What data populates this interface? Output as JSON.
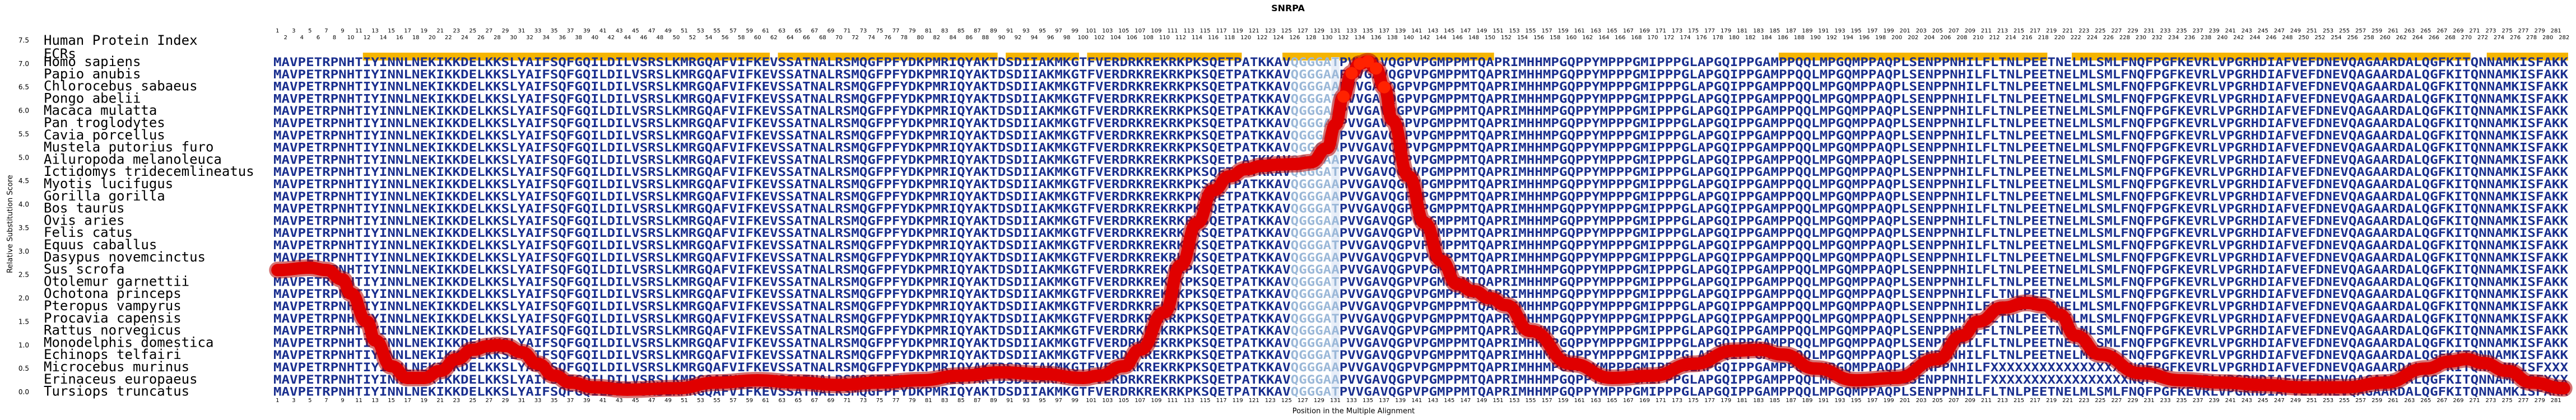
{
  "chart_data": {
    "type": "line",
    "title": "SNRPA",
    "xlabel": "Position in the Multiple Alignment",
    "ylabel": "Relative Substitution Score",
    "ylim": [
      0,
      7.5
    ],
    "yticks": [
      "0.0",
      "0.5",
      "1.0",
      "1.5",
      "2.0",
      "2.5",
      "3.0",
      "3.5",
      "4.0",
      "4.5",
      "5.0",
      "5.5",
      "6.0",
      "6.5",
      "7.0",
      "7.5"
    ],
    "alignment_length": 282,
    "header_labels": [
      "Human Protein Index",
      "ECRs"
    ],
    "species": [
      "Homo sapiens",
      "Papio anubis",
      "Chlorocebus sabaeus",
      "Pongo abelii",
      "Macaca mulatta",
      "Pan troglodytes",
      "Cavia porcellus",
      "Mustela putorius furo",
      "Ailuropoda melanoleuca",
      "Ictidomys tridecemlineatus",
      "Myotis lucifugus",
      "Gorilla gorilla",
      "Bos taurus",
      "Ovis aries",
      "Felis catus",
      "Equus caballus",
      "Dasypus novemcinctus",
      "Sus scrofa",
      "Otolemur garnettii",
      "Ochotona princeps",
      "Pteropus vampyrus",
      "Procavia capensis",
      "Rattus norvegicus",
      "Monodelphis domestica",
      "Echinops telfairi",
      "Microcebus murinus",
      "Erinaceus europaeus",
      "Tursiops truncatus"
    ],
    "ecr_regions": [
      [
        12,
        61
      ],
      [
        63,
        89
      ],
      [
        91,
        99
      ],
      [
        101,
        119
      ],
      [
        125,
        150
      ],
      [
        186,
        218
      ],
      [
        222,
        270
      ],
      [
        273,
        282
      ]
    ],
    "sequence_full": "MAVPETRPNHTIYINNLNEKIKKDELKKSLYAIFSQFGQILDILVSRSLKMRGQAFVIFKEVSSATNALRSMQGFPFYDKPMRIQYAKTDSDIIAKMKGTFVERDRKREKRKPKSQETPATKKAVQGGGATPVVGAVQGPVPGMPPMTQAPRIMHHMPGQPPYMPPPGMIPPPGLAPGQIPPGAMPPQQLMPGQMPPAQPLSENPPNHILFLTNLPEETNELMLSMLFNQFPGFKEVRLVPGRHDIAFVEFDNEVQAGAARDALQGFKITQNNAMKISFAKK",
    "sequence_variant_a": "MAVPETRPNHTIYINNLNEKIKKDELKKSLYAIFSQFGQILDILVSRSLKMRGQAFVIFKEVSSATNALRSMQGFPFYDKPMRIQYAKTDSDIIAKMKGTFVERDRKREKRKPKSQETPATKKAVQGGGAAPVVGAVQGPVPGMPPMTQAPRIMHHMPGQPPYMPPPGMIPPPGLAPGQIPPGAMPPQQLMPGQMPPAQPLSENPPNHILFLTNLPEETNELMLSMLFNQFPGFKEVRLVPGRHDIAFVEFDNEVQAGAARDALQGFKITQNNAMKISFAKK",
    "sequence_variant_b": "MAVPETRPNHTIYINNLNEKIKKDELKKSLYAIFSQFGQILDILVSRSLKMRGQAFVIFKEVSSATNALRSMQGFPFYDKPMRIQYAKTDSDIIAKMKGTFVERDRKREKRKPKSQETPATKKAVQGGGAAPVVGAVQGPVPGMPPMTQAPRIMHHMPGQPPYMPPPGMIPPPGLAPGQIPPGAMPPQQLMPGQMPPAQPLSENPPNHILFLTNLPEETNELMLSMLFNQFPGFKEVRLVPGRHDIAFVEFDNEVQAGAARDALQGFKITQNNAMKISFAKK",
    "sequence_xmasked": "MAVPETRPNHTIYINNLNEKIKKDELKKSLYAIFSQFGQILDILVSRSLKMRGQAFVIFKEVSSATNALRSMQGFPFYDKPMRIQYAKTDSDIIAKMKGTFVERDRKREKRKPKSQETPATKKAVQGGGAAPVVGAVQGPVPGMPPMTQAPRIMHHMPGQPPYMPPPGMIPPPGLAPGQIPPGAMPPQQLMPGQMPPAQPLSENPPNHILFLTNLPEETNELMLSMLFNQFPGFKEVRLVPGRHDIAFVEFDNEVQAGAARDALQGFKITQNNAMKISFAKK",
    "xmask_ranges": [
      [
        212,
        228
      ],
      [
        280,
        282
      ]
    ],
    "xmask_rows": [
      25,
      26
    ],
    "curve": {
      "x": [
        1,
        5,
        7,
        9,
        10,
        12,
        13,
        15,
        17,
        19,
        21,
        23,
        25,
        27,
        28,
        29,
        31,
        33,
        35,
        37,
        40,
        44,
        50,
        55,
        60,
        65,
        70,
        75,
        80,
        85,
        90,
        95,
        100,
        102,
        105,
        107,
        110,
        112,
        114,
        116,
        118,
        120,
        122,
        124,
        126,
        128,
        130,
        131,
        132,
        133,
        134,
        135,
        136,
        137,
        138,
        140,
        142,
        144,
        146,
        148,
        150,
        152,
        155,
        160,
        165,
        170,
        175,
        180,
        183,
        186,
        190,
        195,
        200,
        205,
        208,
        210,
        213,
        216,
        218,
        220,
        222,
        225,
        230,
        235,
        240,
        245,
        250,
        255,
        260,
        265,
        268,
        270,
        272,
        275,
        278,
        282
      ],
      "y": [
        2.6,
        2.65,
        2.6,
        2.4,
        2.1,
        1.5,
        1.1,
        0.55,
        0.3,
        0.3,
        0.45,
        0.7,
        0.9,
        0.98,
        1.0,
        0.98,
        0.85,
        0.6,
        0.35,
        0.2,
        0.1,
        0.05,
        0.08,
        0.2,
        0.25,
        0.2,
        0.15,
        0.2,
        0.25,
        0.35,
        0.42,
        0.38,
        0.3,
        0.35,
        0.55,
        0.9,
        1.7,
        2.7,
        3.6,
        4.3,
        4.6,
        4.75,
        4.82,
        4.85,
        4.86,
        4.9,
        5.2,
        5.7,
        6.3,
        6.8,
        7.0,
        7.05,
        6.9,
        6.5,
        5.8,
        4.6,
        3.6,
        2.8,
        2.3,
        2.15,
        2.0,
        1.85,
        1.3,
        0.6,
        0.3,
        0.35,
        0.6,
        0.88,
        0.9,
        0.8,
        0.5,
        0.25,
        0.3,
        0.7,
        1.2,
        1.5,
        1.8,
        1.9,
        1.85,
        1.65,
        1.2,
        0.8,
        0.4,
        0.25,
        0.2,
        0.15,
        0.1,
        0.1,
        0.2,
        0.5,
        0.65,
        0.7,
        0.62,
        0.45,
        0.2,
        0.08
      ]
    },
    "colors": {
      "curve": "#e00000",
      "curve_peak": "#ff2200",
      "ecr": "#f5b400",
      "residue": "#1a2f8f",
      "residue_var": "#3a8fd6",
      "residue_light": "#9bb8d8",
      "highlight": "#e8eef8",
      "highlight_dark": "#7a9cc6"
    }
  }
}
